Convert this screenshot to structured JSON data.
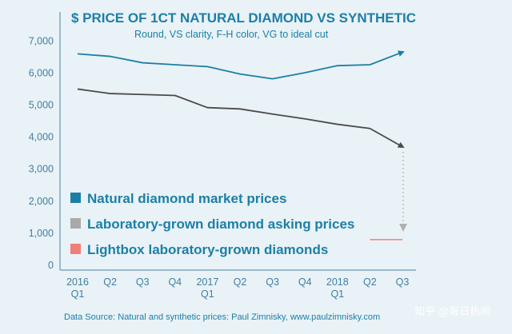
{
  "chart_data": {
    "type": "line",
    "title": "$ PRICE OF 1CT NATURAL DIAMOND VS SYNTHETIC",
    "subtitle": "Round, VS clarity, F-H color, VG to ideal cut",
    "categories": [
      [
        "2016",
        "Q1"
      ],
      [
        "Q2",
        ""
      ],
      [
        "Q3",
        ""
      ],
      [
        "Q4",
        ""
      ],
      [
        "2017",
        "Q1"
      ],
      [
        "Q2",
        ""
      ],
      [
        "Q3",
        ""
      ],
      [
        "Q4",
        ""
      ],
      [
        "2018",
        "Q1"
      ],
      [
        "Q2",
        ""
      ],
      [
        "Q3",
        ""
      ]
    ],
    "yticks": [
      "0",
      "1,000",
      "2,000",
      "3,000",
      "4,000",
      "5,000",
      "6,000",
      "7,000"
    ],
    "ylim": [
      0,
      7000
    ],
    "grid": false,
    "series": [
      {
        "name": "Natural diamond market prices",
        "color": "#1c7fa7",
        "x": [
          0,
          1,
          2,
          3,
          4,
          5,
          6,
          7,
          8,
          9,
          10
        ],
        "values": [
          6600,
          6520,
          6320,
          6260,
          6200,
          5970,
          5820,
          6010,
          6230,
          6260,
          6650
        ]
      },
      {
        "name": "Laboratory-grown diamond asking prices",
        "color": "#4a4a4a",
        "x": [
          0,
          1,
          2,
          3,
          4,
          5,
          6,
          7,
          8,
          9,
          10
        ],
        "values": [
          5500,
          5360,
          5330,
          5300,
          4920,
          4880,
          4720,
          4570,
          4400,
          4270,
          3700
        ]
      },
      {
        "name": "Lightbox laboratory-grown diamonds",
        "color": "#f07e7a",
        "x": [
          9,
          10
        ],
        "values": [
          800,
          800
        ]
      }
    ],
    "legend": {
      "position": "lower-left",
      "swatch_colors": [
        "#1c7fa7",
        "#a9a9a9",
        "#f07e7a"
      ]
    },
    "source": "Data Source: Natural and synthetic prices: Paul Zimnisky, www.paulzimnisky.com",
    "watermark": "知乎 @每日热闻"
  }
}
